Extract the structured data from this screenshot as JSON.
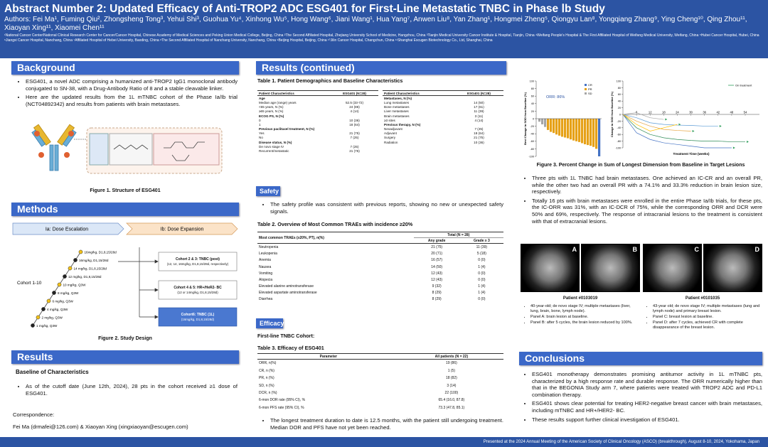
{
  "header": {
    "title": "Abstract Number 2: Updated Efficacy of Anti-TROP2 ADC ESG401 for First-Line Metastatic TNBC in Phase Ⅰb Study",
    "authors": "Authors: Fei Ma¹, Fuming Qiu², Zhongsheng Tong³, Yehui Shi³, Guohua Yu⁴, Xinhong Wu⁵, Hong Wang⁶, Jiani Wang¹, Hua Yang⁷, Anwen Liu⁸, Yan Zhang¹, Hongmei Zheng⁵, Qiongyu Lan⁸, Yongqiang Zhang⁹, Ying Cheng¹⁰, Qing Zhou¹¹, Xiaoyan Xing¹¹, Xiaomei Chen¹¹",
    "affiliations": "¹National Cancer Center/National Clinical Research Center for Cancer/Cancer Hospital, Chinese Academy of Medical Sciences and Peking Union Medical College, Beijing, China ²The Second Affiliated Hospital, Zhejiang University School of Medicine, Hangzhou, China ³Tianjin Medical University Cancer Institute & Hospital, Tianjin, China ⁴Weifang People's Hospital & The First Affiliated Hospital of Weifang Medical University, Weifang, China ⁵Hubei Cancer Hospital, Hubei, China ⁶Jiangxi Cancer Hospital, Nanchang, China ⁷Affiliated Hospital of Hebei University, Baoding, China ⁸The Second Affiliated Hospital of Nanchang University, Nanchang, China ⁹Beijing Hospital, Beijing, China ¹⁰Jilin Cancer Hospital, Changchun, China ¹¹Shanghai Escugen Biotechnology Co., Ltd, Shanghai, China"
  },
  "background": {
    "heading": "Background",
    "bullets": [
      "ESG401, a novel ADC comprising a humanized anti-TROP2 IgG1 monoclonal antibody conjugated to SN-38, with a Drug-Antibody Ratio of 8 and a stable cleavable linker.",
      "Here are the updated results from the 1L mTNBC cohort of the Phase Ia/Ib trial (NCT04892342) and results from patients with brain metastases."
    ],
    "figure_caption": "Figure 1. Structure of ESG401"
  },
  "methods": {
    "heading": "Methods",
    "phase_ia": "Ia: Dose Escalation",
    "phase_ib": "Ib: Dose Expansion",
    "cohort_label": "Cohort 1-10",
    "doses": [
      "16mg/kg, D1,8,15/28d",
      "16mg/kg, D1,15/28d",
      "14 mg/kg, D1,8,15/28d",
      "12 mg/kg, D1,8,15/28d",
      "10 mg/kg, Q3W",
      "8 mg/kg, Q3W",
      "6 mg/kg, Q3W",
      "4 mg/kg, Q3W",
      "2 mg/kg, Q3W",
      "1 mg/kg, Q3W"
    ],
    "cohorts": [
      {
        "title": "Cohort 2 & 3: TNBC (post)",
        "detail": "(12, 14, 16mg/kg, D1,8,15/28d, respectively)"
      },
      {
        "title": "Cohort 4 & 5: HR+/HeR2- BC",
        "detail": "(12 or 14mg/kg, D1,8,15/28d)"
      },
      {
        "title": "Cohort6: TNBC (1L)",
        "detail": "(16mg/kg, D1,8,15/28d)"
      }
    ],
    "figure_caption": "Figure 2. Study Design"
  },
  "results": {
    "heading": "Results",
    "subheading": "Baseline of Characteristics",
    "bullets": [
      "As of the cutoff date (June 12th, 2024), 28 pts in the cohort received ≥1 dose of ESG401."
    ],
    "correspondence_label": "Correspondence:",
    "correspondence": "Fei Ma (drmafei@126.com) & Xiaoyan Xing (xingxiaoyan@escugen.com)"
  },
  "results_continued": {
    "heading": "Results (continued)",
    "table1": {
      "title": "Table 1. Patient Demographics and Baseline Characteristics",
      "columns": [
        "Patient Characteristics",
        "ESG401 (N=28)"
      ],
      "left_rows": [
        [
          "Age"
        ],
        [
          "Median age (range) years",
          "52.5 (33-72)"
        ],
        [
          "<65 years, N (%)",
          "24 (86)"
        ],
        [
          "≥65 years, N (%)",
          "4 (14)"
        ],
        [
          "ECOG PS, N (%)"
        ],
        [
          "0",
          "10 (36)"
        ],
        [
          "1",
          "18 (64)"
        ],
        [
          "Previous paclitaxel treatment, N (%)"
        ],
        [
          "Yes",
          "21 (75)"
        ],
        [
          "No",
          "7 (25)"
        ],
        [
          "Disease status, N (%)"
        ],
        [
          "De novo stage IV",
          "7 (25)"
        ],
        [
          "Recurrent/metastatic",
          "21 (75)"
        ]
      ],
      "right_rows": [
        [
          "Metastases, N (%)"
        ],
        [
          "Lung metastases",
          "14 (50)"
        ],
        [
          "Bone metastases",
          "17 (61)"
        ],
        [
          "Liver metastases",
          "11 (39)"
        ],
        [
          "Brain metastases",
          "3 (11)"
        ],
        [
          "≥3 sites",
          "4 (14)"
        ],
        [
          "Previous therapy, N (%)"
        ],
        [
          "Neoadjuvant",
          "7 (25)"
        ],
        [
          "Adjuvant",
          "18 (64)"
        ],
        [
          "Surgery",
          "21 (75)"
        ],
        [
          "Radiation",
          "10 (36)"
        ]
      ]
    },
    "safety_heading": "Safety",
    "safety_bullets": [
      "The safety profile was consistent with previous reports, showing no new or unexpected safety signals."
    ],
    "table2": {
      "title": "Table 2. Overview of Most Common TRAEs with incidence ≥20%",
      "group": "Total (N = 28)",
      "columns": [
        "Most common TRAEs (≥20%, PT), n(%)",
        "Any grade",
        "Grade ≥ 3"
      ],
      "rows": [
        [
          "Neutropenia",
          "21 (75)",
          "11 (39)"
        ],
        [
          "Leukopenia",
          "20 (71)",
          "5 (18)"
        ],
        [
          "Anemia",
          "16 (57)",
          "0 (0)"
        ],
        [
          "Nausea",
          "14 (50)",
          "1 (4)"
        ],
        [
          "Vomiting",
          "12 (43)",
          "0 (0)"
        ],
        [
          "Alopecia",
          "12 (43)",
          "0 (0)"
        ],
        [
          "Elevated alanine aminotransferase",
          "9 (32)",
          "1 (4)"
        ],
        [
          "Elevated aspartate aminotransferase",
          "8 (29)",
          "1 (4)"
        ],
        [
          "Diarrhea",
          "8 (29)",
          "0 (0)"
        ]
      ]
    },
    "efficacy_heading": "Efficacy",
    "efficacy_subheading": "First-line TNBC Cohort:",
    "table3": {
      "title": "Table 3. Efficacy of ESG401",
      "columns": [
        "Parameter",
        "All patients (N = 22)"
      ],
      "rows": [
        [
          "ORR, n(%)",
          "19 (86)"
        ],
        [
          "CR, n (%)",
          "1 (5)"
        ],
        [
          "PR, n (%)",
          "18 (82)"
        ],
        [
          "SD, n (%)",
          "3 (14)"
        ],
        [
          "DCR, n (%)",
          "22 (100)"
        ],
        [
          "6-mon DOR rate (95% CI), %",
          "65.4 (16.0, 87.8)"
        ],
        [
          "6-mon PFS rate (95% CI), %",
          "73.3 (47.8, 85.1)"
        ]
      ]
    },
    "efficacy_bullets": [
      "The longest treatment duration to date is 12.5 months, with the patient still undergoing treatment. Median DOR and PFS have not yet been reached."
    ]
  },
  "chart_data": [
    {
      "type": "bar",
      "ylabel": "Best Change in SOD from Baseline (%)",
      "annotation": "ORR: 86%",
      "ylim": [
        -100,
        100
      ],
      "yticks": [
        100,
        80,
        60,
        40,
        20,
        0,
        -20,
        -40,
        -60,
        -80,
        -100
      ],
      "series": [
        {
          "name": "CR",
          "color": "#4472c4",
          "values": [
            null,
            null,
            null,
            null,
            null,
            null,
            null,
            null,
            null,
            null,
            null,
            null,
            null,
            null,
            null,
            null,
            null,
            null,
            null,
            null,
            null,
            -100
          ]
        },
        {
          "name": "PR",
          "color": "#e6a117",
          "values": [
            null,
            null,
            null,
            -30,
            -35,
            -38,
            -42,
            -45,
            -48,
            -50,
            -52,
            -55,
            -58,
            -60,
            -62,
            -65,
            -68,
            -70,
            -72,
            -75,
            -80,
            null
          ]
        },
        {
          "name": "SD",
          "color": "#a5a5a5",
          "values": [
            -8,
            -15,
            -22,
            null,
            null,
            null,
            null,
            null,
            null,
            null,
            null,
            null,
            null,
            null,
            null,
            null,
            null,
            null,
            null,
            null,
            null,
            null
          ]
        }
      ]
    },
    {
      "type": "line",
      "ylabel": "Change in SOD from Baseline (%)",
      "xlabel": "Treatment Time (weeks)",
      "legend": "On treatment",
      "xlim": [
        0,
        54
      ],
      "xticks": [
        6,
        12,
        18,
        24,
        30,
        36,
        42,
        48,
        54
      ],
      "ylim": [
        -100,
        100
      ],
      "yticks": [
        100,
        80,
        60,
        40,
        20,
        0,
        -20,
        -40,
        -60,
        -80,
        -100
      ],
      "series": [
        {
          "color": "#2e8b57",
          "x": [
            0,
            6,
            12,
            18,
            24,
            30,
            36,
            42,
            48,
            54
          ],
          "values": [
            0,
            -40,
            -60,
            -70,
            -75,
            -78,
            -80,
            -80,
            -82,
            -82
          ]
        },
        {
          "color": "#e6a23c",
          "x": [
            0,
            6,
            12,
            18,
            24,
            30
          ],
          "values": [
            0,
            -20,
            -35,
            -45,
            -48,
            -50
          ]
        },
        {
          "color": "#5b9bd5",
          "x": [
            0,
            6,
            12,
            18,
            24,
            30,
            36,
            42
          ],
          "values": [
            0,
            -10,
            -25,
            -30,
            -32,
            -33,
            -35,
            -35
          ]
        },
        {
          "color": "#a5a5a5",
          "x": [
            0,
            6,
            12,
            18
          ],
          "values": [
            0,
            5,
            -10,
            -15
          ]
        },
        {
          "color": "#4472c4",
          "x": [
            0,
            6,
            12,
            18,
            24,
            30,
            36,
            42,
            48
          ],
          "values": [
            0,
            -55,
            -75,
            -85,
            -90,
            -95,
            -100,
            -100,
            -100
          ]
        },
        {
          "color": "#ffc000",
          "x": [
            0,
            6,
            12,
            18,
            24
          ],
          "values": [
            0,
            -30,
            -50,
            -40,
            -30
          ]
        }
      ]
    }
  ],
  "figure3": {
    "caption": "Figure 3. Percent Change in Sum of Longest Dimension from Baseline in Target Lesions",
    "bullets": [
      "Three pts with 1L TNBC had brain metastases. One achieved an IC-CR and an overall PR, while the other two had an overall PR with a 74.1% and 33.3% reduction in brain lesion size, respectively.",
      "Totally 16 pts with brain metastases were enrolled in the entire Phase Ia/Ib trials, for these pts, the IC-ORR was 31%, with an IC-DCR of 75%, while the corresponding ORR and DCR were 50% and 69%, respectively. The response of intracranial lesions to the treatment is consistent with that of extracranial lesions."
    ]
  },
  "patients": [
    {
      "panels": [
        "A",
        "B"
      ],
      "label": "Patient #0103019",
      "bullets": [
        "40-year-old; de novo stage IV; multiple metastases (liver, lung, brain, bone, lymph node).",
        "Panel A: brain lesion at baseline.",
        "Panel B: after 5 cycles, the brain lesion reduced by 100%."
      ]
    },
    {
      "panels": [
        "C",
        "D"
      ],
      "label": "Patient #0101035",
      "bullets": [
        "43-year old; de novo stage IV; multiple metastases (lung and lymph node) and primary breast lesion.",
        "Panel C: breast lesion at baseline.",
        "Panel D: after 7 cycles, achieved CR with complete disappearance of the breast lesion."
      ]
    }
  ],
  "conclusions": {
    "heading": "Conclusions",
    "bullets": [
      "ESG401 monotherapy demonstrates promising antitumor activity in 1L mTNBC pts, characterized by a high response rate and durable response. The ORR numerically higher than that in the BEGONIA Study arm 7, where patients were treated with TROP2 ADC and PD-L1 combination therapy.",
      "ESG401 shows clear potential for treating HER2-negative breast cancer with brain metastases, including mTNBC and HR+/HER2- BC.",
      "These results support further clinical investigation of ESG401."
    ]
  },
  "footer": "Presented at the 2024 Annual Meeting of the American Society of Clinical Oncology (ASCO) (breakthrough), August 8-10, 2024, Yokohama, Japan"
}
